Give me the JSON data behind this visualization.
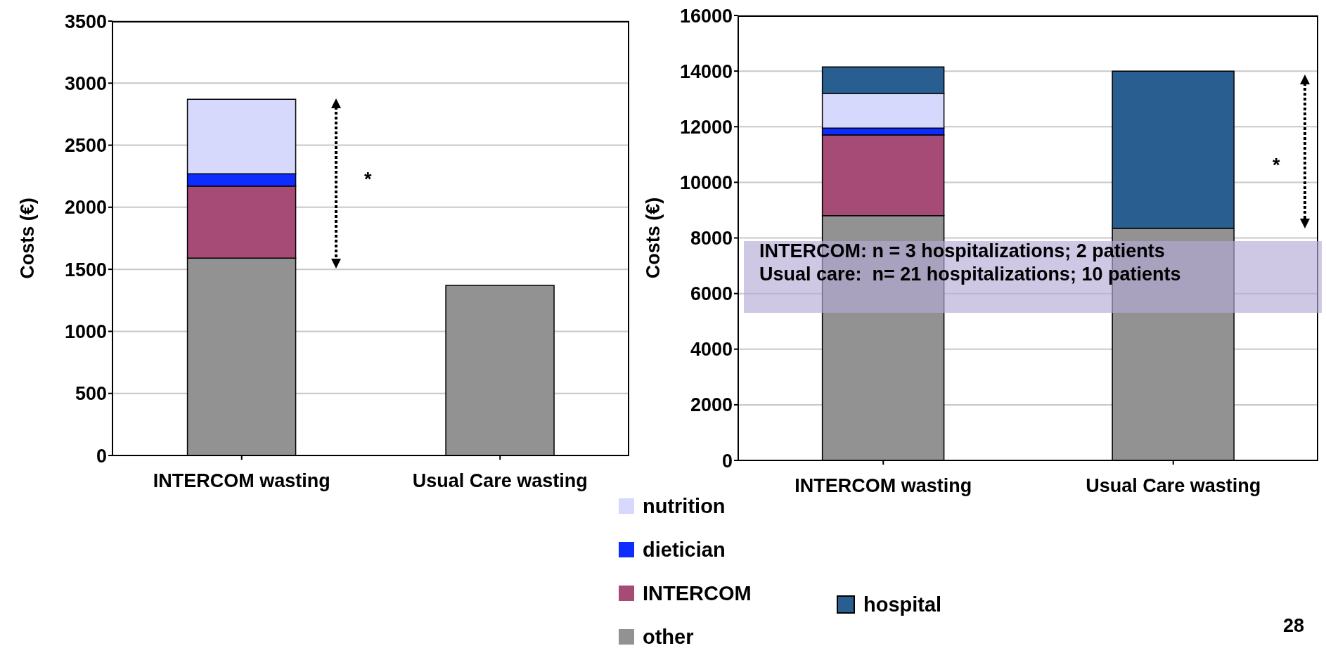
{
  "chart_data": [
    {
      "type": "bar",
      "stacked": true,
      "categories": [
        "INTERCOM wasting",
        "Usual Care wasting"
      ],
      "ylabel": "Costs (€)",
      "ylim": [
        0,
        3500
      ],
      "yticks": [
        0,
        500,
        1000,
        1500,
        2000,
        2500,
        3000,
        3500
      ],
      "grid": "y",
      "legend": "bottom right",
      "annotations": [
        "*"
      ],
      "series": [
        {
          "name": "other",
          "color": "#929292",
          "values": [
            1590,
            1370
          ]
        },
        {
          "name": "INTERCOM",
          "color": "#a64b75",
          "values": [
            580,
            null
          ]
        },
        {
          "name": "dietician",
          "color": "#0f2cff",
          "values": [
            100,
            null
          ]
        },
        {
          "name": "nutrition",
          "color": "#d6d8fc",
          "values": [
            600,
            null
          ]
        }
      ]
    },
    {
      "type": "bar",
      "stacked": true,
      "categories": [
        "INTERCOM wasting",
        "Usual Care wasting"
      ],
      "ylabel": "Costs (€)",
      "ylim": [
        0,
        16000
      ],
      "yticks": [
        0,
        2000,
        4000,
        6000,
        8000,
        10000,
        12000,
        14000,
        16000
      ],
      "grid": "y",
      "legend": "bottom left",
      "annotations": [
        "*",
        "INTERCOM: n = 3 hospitalizations; 2 patients\nUsual care:  n= 21 hospitalizations; 10 patients",
        "28"
      ],
      "series": [
        {
          "color": "#929292",
          "values": [
            8800,
            8350
          ]
        },
        {
          "color": "#a64b75",
          "values": [
            2900,
            null
          ]
        },
        {
          "color": "#0f2cff",
          "values": [
            250,
            null
          ]
        },
        {
          "color": "#d6d8fc",
          "values": [
            1250,
            null
          ]
        },
        {
          "name": "hospital",
          "color": "#285e90",
          "values": [
            950,
            5650
          ]
        }
      ]
    }
  ]
}
